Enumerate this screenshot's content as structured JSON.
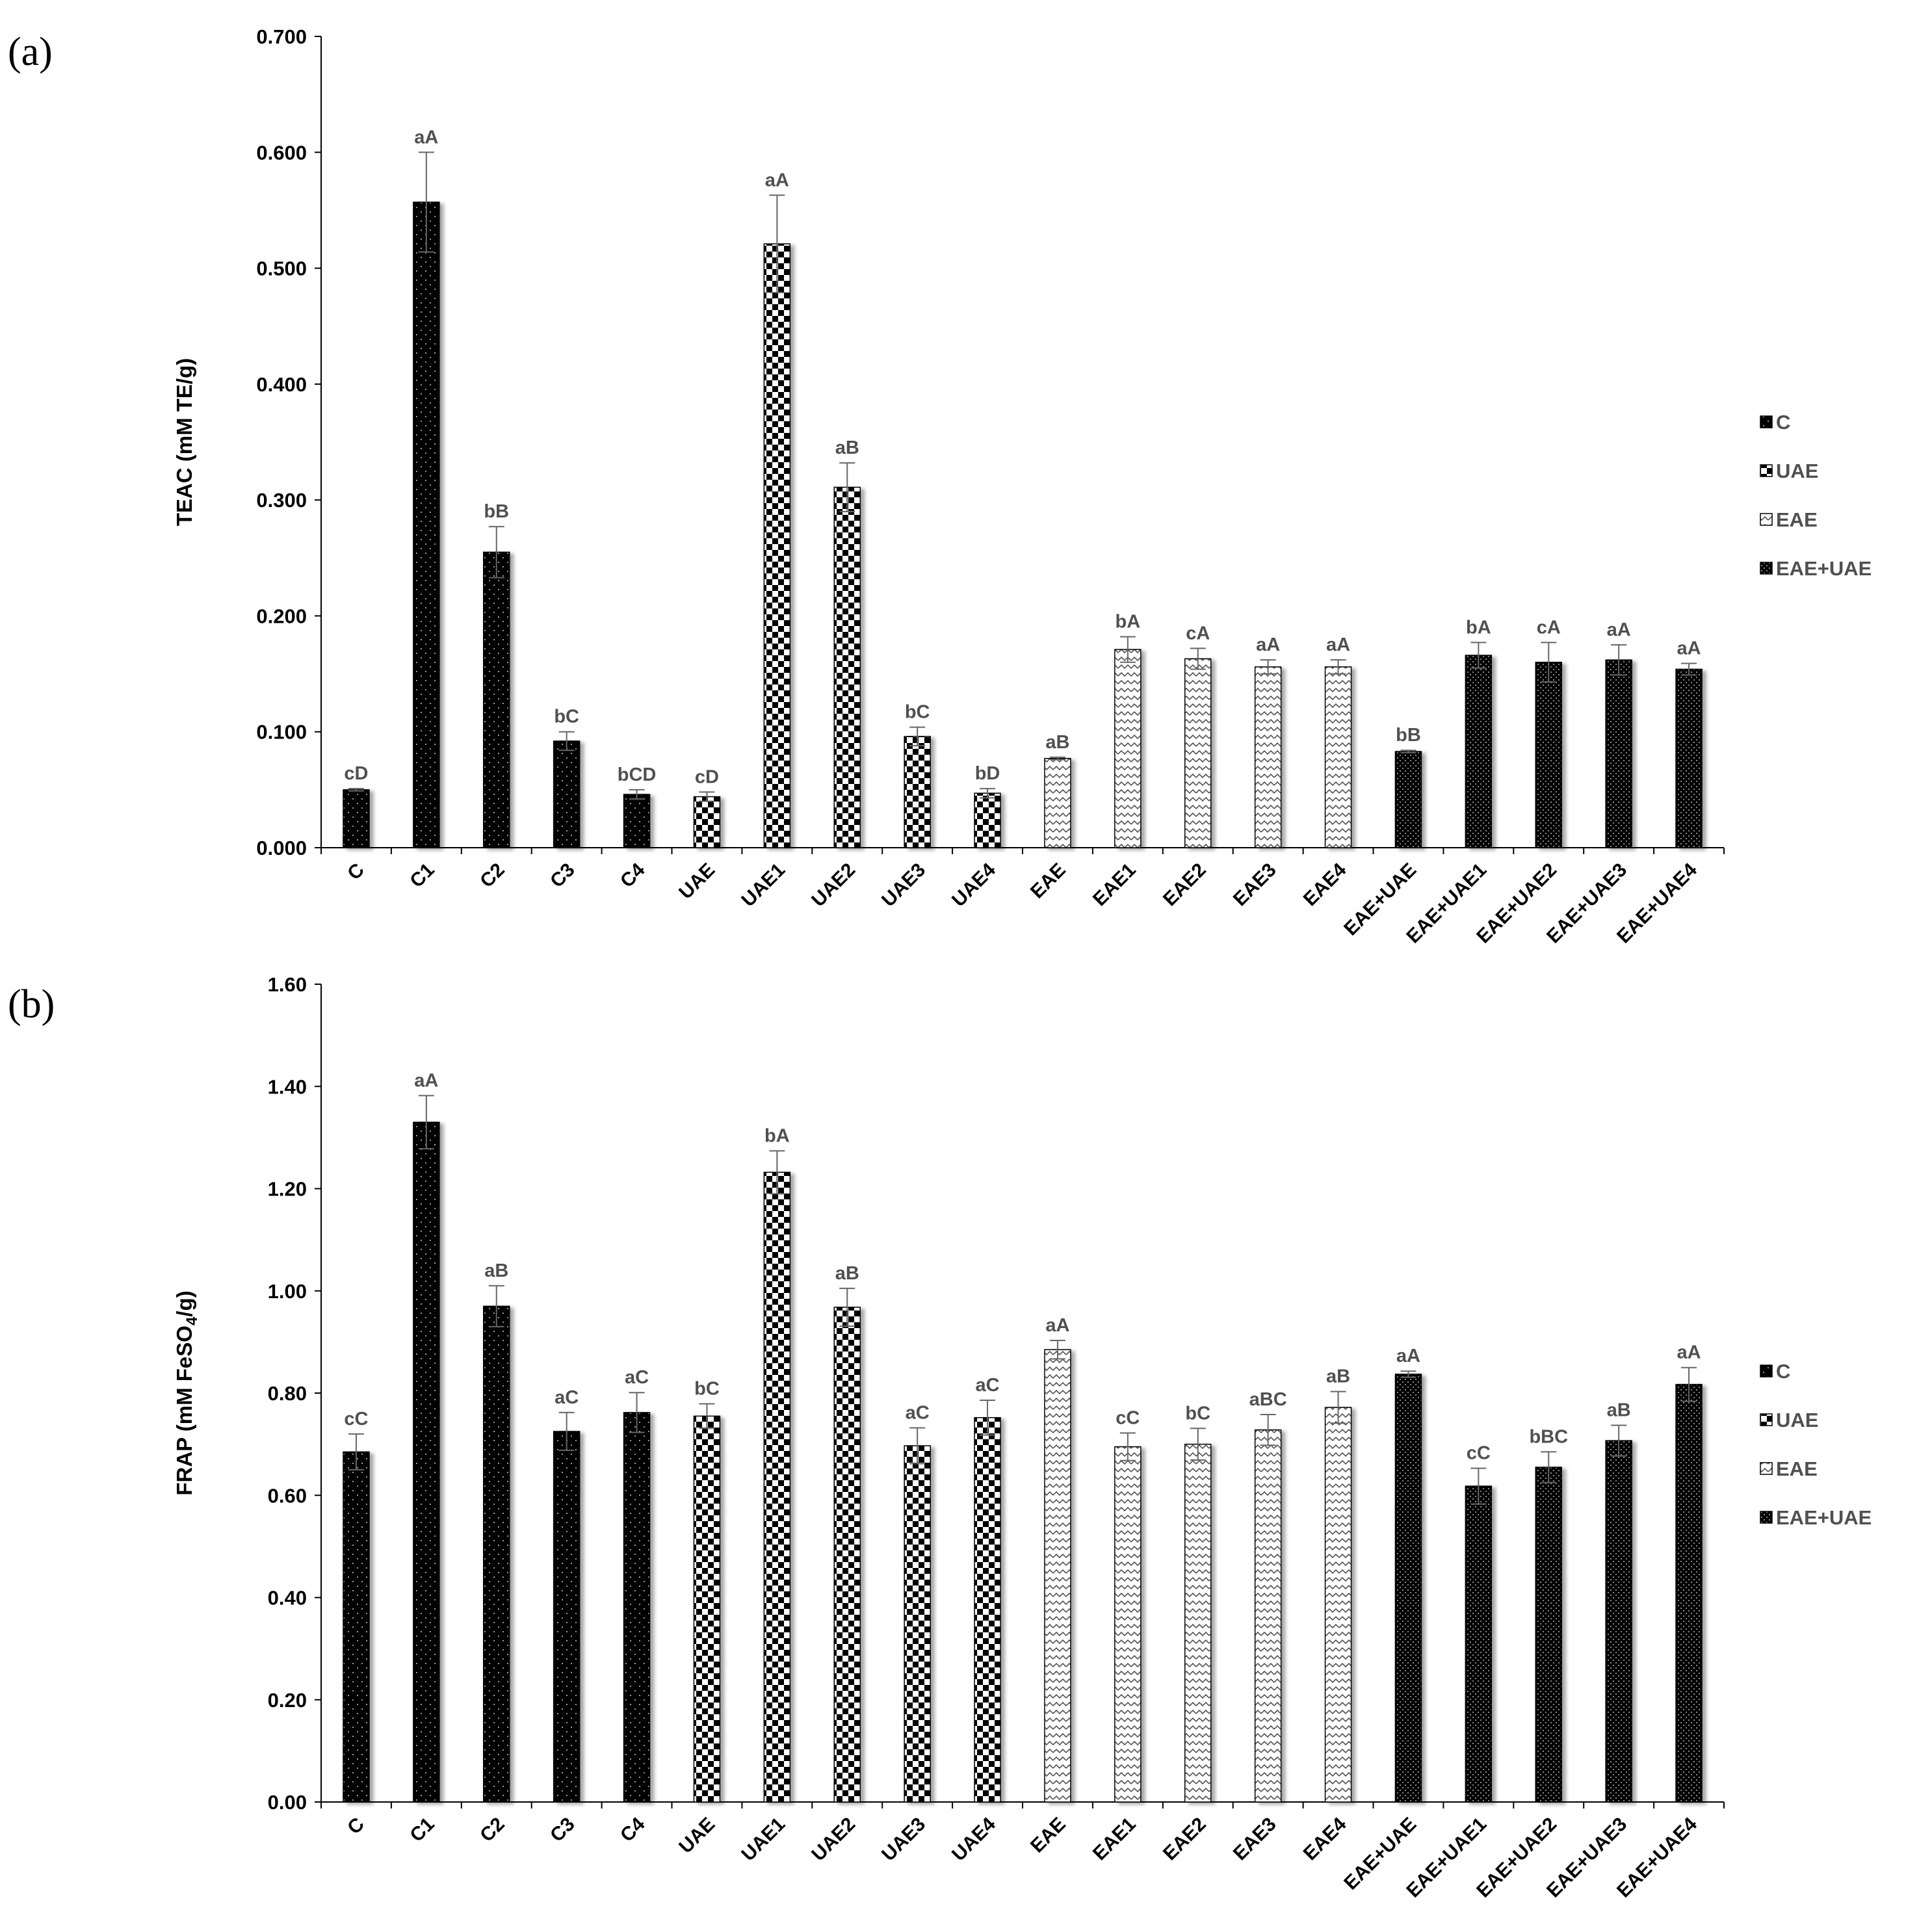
{
  "chart_data": [
    {
      "panel_label": "(a)",
      "type": "bar",
      "ylabel": "TEAC (mM TE/g)",
      "ylim": [
        0,
        0.7
      ],
      "yticks": [
        "0.000",
        "0.100",
        "0.200",
        "0.300",
        "0.400",
        "0.500",
        "0.600",
        "0.700"
      ],
      "categories": [
        "C",
        "C1",
        "C2",
        "C3",
        "C4",
        "UAE",
        "UAE1",
        "UAE2",
        "UAE3",
        "UAE4",
        "EAE",
        "EAE1",
        "EAE2",
        "EAE3",
        "EAE4",
        "EAE+UAE",
        "EAE+UAE1",
        "EAE+UAE2",
        "EAE+UAE3",
        "EAE+UAE4"
      ],
      "groups": [
        "C",
        "C",
        "C",
        "C",
        "C",
        "UAE",
        "UAE",
        "UAE",
        "UAE",
        "UAE",
        "EAE",
        "EAE",
        "EAE",
        "EAE",
        "EAE",
        "EAE+UAE",
        "EAE+UAE",
        "EAE+UAE",
        "EAE+UAE",
        "EAE+UAE"
      ],
      "values": [
        0.05,
        0.557,
        0.255,
        0.092,
        0.046,
        0.044,
        0.521,
        0.311,
        0.096,
        0.047,
        0.077,
        0.171,
        0.163,
        0.156,
        0.156,
        0.083,
        0.166,
        0.16,
        0.162,
        0.154
      ],
      "errors": [
        0.001,
        0.043,
        0.022,
        0.008,
        0.004,
        0.004,
        0.042,
        0.021,
        0.008,
        0.004,
        0.001,
        0.011,
        0.009,
        0.006,
        0.006,
        0.001,
        0.011,
        0.017,
        0.013,
        0.005
      ],
      "significance": [
        "cD",
        "aA",
        "bB",
        "bC",
        "bCD",
        "cD",
        "aA",
        "aB",
        "bC",
        "bD",
        "aB",
        "bA",
        "cA",
        "aA",
        "aA",
        "bB",
        "bA",
        "cA",
        "aA",
        "aA"
      ],
      "legend": [
        "C",
        "UAE",
        "EAE",
        "EAE+UAE"
      ],
      "legend_position": "right"
    },
    {
      "panel_label": "(b)",
      "type": "bar",
      "ylabel": "FRAP (mM FeSO4/g)",
      "ylabel_main": "FRAP (mM FeSO",
      "ylabel_sub": "4",
      "ylabel_end": "/g)",
      "ylim": [
        0,
        1.6
      ],
      "yticks": [
        "0.00",
        "0.20",
        "0.40",
        "0.60",
        "0.80",
        "1.00",
        "1.20",
        "1.40",
        "1.60"
      ],
      "categories": [
        "C",
        "C1",
        "C2",
        "C3",
        "C4",
        "UAE",
        "UAE1",
        "UAE2",
        "UAE3",
        "UAE4",
        "EAE",
        "EAE1",
        "EAE2",
        "EAE3",
        "EAE4",
        "EAE+UAE",
        "EAE+UAE1",
        "EAE+UAE2",
        "EAE+UAE3",
        "EAE+UAE4"
      ],
      "groups": [
        "C",
        "C",
        "C",
        "C",
        "C",
        "UAE",
        "UAE",
        "UAE",
        "UAE",
        "UAE",
        "EAE",
        "EAE",
        "EAE",
        "EAE",
        "EAE",
        "EAE+UAE",
        "EAE+UAE",
        "EAE+UAE",
        "EAE+UAE",
        "EAE+UAE"
      ],
      "values": [
        0.685,
        1.33,
        0.97,
        0.725,
        0.762,
        0.755,
        1.232,
        0.968,
        0.697,
        0.752,
        0.885,
        0.695,
        0.7,
        0.728,
        0.772,
        0.837,
        0.618,
        0.655,
        0.707,
        0.817
      ],
      "errors": [
        0.035,
        0.052,
        0.04,
        0.037,
        0.039,
        0.024,
        0.042,
        0.037,
        0.035,
        0.034,
        0.018,
        0.027,
        0.031,
        0.03,
        0.031,
        0.006,
        0.035,
        0.03,
        0.03,
        0.033
      ],
      "significance": [
        "cC",
        "aA",
        "aB",
        "aC",
        "aC",
        "bC",
        "bA",
        "aB",
        "aC",
        "aC",
        "aA",
        "cC",
        "bC",
        "aBC",
        "aB",
        "aA",
        "cC",
        "bBC",
        "aB",
        "aA"
      ],
      "legend": [
        "C",
        "UAE",
        "EAE",
        "EAE+UAE"
      ],
      "legend_position": "right"
    }
  ]
}
